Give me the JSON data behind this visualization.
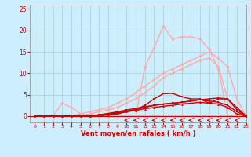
{
  "xlabel": "Vent moyen/en rafales ( km/h )",
  "xlim": [
    -0.5,
    23
  ],
  "ylim": [
    -1.5,
    26
  ],
  "yticks": [
    0,
    5,
    10,
    15,
    20,
    25
  ],
  "xticks": [
    0,
    1,
    2,
    3,
    4,
    5,
    6,
    7,
    8,
    9,
    10,
    11,
    12,
    13,
    14,
    15,
    16,
    17,
    18,
    19,
    20,
    21,
    22,
    23
  ],
  "bg_color": "#cceeff",
  "grid_color": "#aacccc",
  "lines": [
    {
      "x": [
        0,
        1,
        2,
        3,
        4,
        5,
        6,
        7,
        8,
        9,
        10,
        11,
        12,
        13,
        14,
        15,
        16,
        17,
        18,
        19,
        20,
        21,
        22,
        23
      ],
      "y": [
        0,
        0,
        0,
        0,
        0,
        0,
        0,
        0,
        0,
        0,
        0,
        0,
        11.5,
        16,
        21,
        18,
        18.5,
        18.5,
        18,
        15.5,
        11,
        0,
        0,
        0
      ],
      "color": "#ffaaaa",
      "lw": 1.0,
      "marker": "D",
      "ms": 2.0,
      "zorder": 2
    },
    {
      "x": [
        0,
        1,
        2,
        3,
        4,
        5,
        6,
        7,
        8,
        9,
        10,
        11,
        12,
        13,
        14,
        15,
        16,
        17,
        18,
        19,
        20,
        21,
        22,
        23
      ],
      "y": [
        0,
        0,
        0,
        0,
        0,
        0.5,
        1,
        1.5,
        2,
        3,
        4,
        5.5,
        7,
        8.5,
        10,
        11,
        12,
        13,
        14,
        15,
        13.5,
        11.5,
        4,
        0
      ],
      "color": "#ffaaaa",
      "lw": 1.0,
      "marker": "D",
      "ms": 2.0,
      "zorder": 2
    },
    {
      "x": [
        0,
        1,
        2,
        3,
        4,
        5,
        6,
        7,
        8,
        9,
        10,
        11,
        12,
        13,
        14,
        15,
        16,
        17,
        18,
        19,
        20,
        21,
        22,
        23
      ],
      "y": [
        0,
        0,
        0,
        3,
        2,
        0.5,
        0,
        0,
        0,
        0,
        0,
        0,
        0,
        0,
        0,
        0,
        0,
        0,
        0,
        0,
        0,
        0,
        0,
        0
      ],
      "color": "#ffaaaa",
      "lw": 1.0,
      "marker": "D",
      "ms": 2.0,
      "zorder": 2
    },
    {
      "x": [
        0,
        1,
        2,
        3,
        4,
        5,
        6,
        7,
        8,
        9,
        10,
        11,
        12,
        13,
        14,
        15,
        16,
        17,
        18,
        19,
        20,
        21,
        22,
        23
      ],
      "y": [
        0,
        0,
        0,
        0,
        0,
        0,
        0.5,
        1,
        1.5,
        2,
        3,
        4,
        5.5,
        7,
        9,
        10,
        11,
        12,
        13,
        13.5,
        11.5,
        4,
        0,
        0
      ],
      "color": "#ffaaaa",
      "lw": 1.0,
      "marker": "D",
      "ms": 2.0,
      "zorder": 2
    },
    {
      "x": [
        0,
        1,
        2,
        3,
        4,
        5,
        6,
        7,
        8,
        9,
        10,
        11,
        12,
        13,
        14,
        15,
        16,
        17,
        18,
        19,
        20,
        21,
        22,
        23
      ],
      "y": [
        0,
        0,
        0,
        0,
        0,
        0,
        0,
        0,
        0.3,
        0.5,
        1,
        1.5,
        2.5,
        4,
        5.2,
        5.3,
        4.5,
        4,
        4,
        3,
        4,
        4,
        1.5,
        0
      ],
      "color": "#cc0000",
      "lw": 1.0,
      "marker": "s",
      "ms": 2.0,
      "zorder": 4
    },
    {
      "x": [
        0,
        1,
        2,
        3,
        4,
        5,
        6,
        7,
        8,
        9,
        10,
        11,
        12,
        13,
        14,
        15,
        16,
        17,
        18,
        19,
        20,
        21,
        22,
        23
      ],
      "y": [
        0,
        0,
        0,
        0,
        0,
        0,
        0,
        0.2,
        0.5,
        0.8,
        1.2,
        1.5,
        2,
        2.5,
        2.8,
        3,
        3.2,
        3.5,
        3.8,
        4,
        4.2,
        4,
        2,
        0
      ],
      "color": "#cc0000",
      "lw": 1.0,
      "marker": "s",
      "ms": 2.0,
      "zorder": 4
    },
    {
      "x": [
        0,
        1,
        2,
        3,
        4,
        5,
        6,
        7,
        8,
        9,
        10,
        11,
        12,
        13,
        14,
        15,
        16,
        17,
        18,
        19,
        20,
        21,
        22,
        23
      ],
      "y": [
        0,
        0,
        0,
        0,
        0,
        0,
        0,
        0.3,
        0.6,
        1,
        1.4,
        1.8,
        2.2,
        2.5,
        2.8,
        3,
        3.2,
        3.5,
        3.8,
        3.5,
        3.2,
        2.5,
        1,
        0
      ],
      "color": "#cc0000",
      "lw": 1.0,
      "marker": "s",
      "ms": 2.0,
      "zorder": 4
    },
    {
      "x": [
        0,
        1,
        2,
        3,
        4,
        5,
        6,
        7,
        8,
        9,
        10,
        11,
        12,
        13,
        14,
        15,
        16,
        17,
        18,
        19,
        20,
        21,
        22,
        23
      ],
      "y": [
        0,
        0,
        0,
        0,
        0,
        0,
        0,
        0.2,
        0.4,
        0.7,
        1,
        1.3,
        1.7,
        2,
        2.3,
        2.5,
        2.8,
        3,
        3.2,
        3,
        2.8,
        2,
        0.5,
        0
      ],
      "color": "#cc0000",
      "lw": 1.0,
      "marker": "^",
      "ms": 2.0,
      "zorder": 4
    }
  ],
  "arrows": {
    "x_positions": [
      10,
      11,
      12,
      13,
      14,
      15,
      16,
      17,
      18,
      19,
      20,
      21,
      22
    ],
    "y": -1.0,
    "color": "#cc0000"
  }
}
